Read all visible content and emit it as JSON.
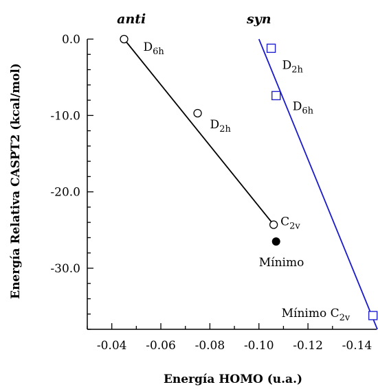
{
  "chart_data": {
    "type": "scatter",
    "xlabel": "Energía HOMO (u.a.)",
    "ylabel": "Energía Relativa CASPT2 (kcal/mol)",
    "xlim": [
      -0.03,
      -0.148
    ],
    "ylim": [
      -38,
      0
    ],
    "x_reversed": true,
    "xticks": [
      -0.04,
      -0.06,
      -0.08,
      -0.1,
      -0.12,
      -0.14
    ],
    "xtick_labels": [
      "-0.04",
      "-0.06",
      "-0.08",
      "-0.10",
      "-0.12",
      "-0.14"
    ],
    "yticks": [
      0,
      -10,
      -20,
      -30
    ],
    "ytick_labels": [
      "0.0",
      "-10.0",
      "-20.0",
      "-30.0"
    ],
    "grid": false,
    "groups": [
      {
        "title": "anti",
        "title_x": -0.048
      },
      {
        "title": "syn",
        "title_x": -0.1
      }
    ],
    "series": [
      {
        "marker": "circle-open",
        "color": "#000000",
        "points": [
          {
            "x": -0.045,
            "y": 0.0,
            "label": "D",
            "sub": "6h"
          },
          {
            "x": -0.075,
            "y": -9.7,
            "label": "D",
            "sub": "2h"
          },
          {
            "x": -0.106,
            "y": -24.3,
            "label": "C",
            "sub": "2v"
          }
        ],
        "fit_line": {
          "x": [
            -0.045,
            -0.106
          ],
          "y": [
            0.0,
            -24.3
          ],
          "color": "#000000"
        }
      },
      {
        "marker": "circle-filled",
        "color": "#000000",
        "points": [
          {
            "x": -0.107,
            "y": -26.5,
            "label": "Mínimo",
            "sub": ""
          }
        ]
      },
      {
        "marker": "square-open",
        "color": "#2222cc",
        "points": [
          {
            "x": -0.105,
            "y": -1.2,
            "label": "D",
            "sub": "2h"
          },
          {
            "x": -0.107,
            "y": -7.4,
            "label": "D",
            "sub": "6h"
          },
          {
            "x": -0.1465,
            "y": -36.2,
            "label": "Mínimo C",
            "sub": "2v"
          }
        ],
        "fit_line": {
          "x": [
            -0.1,
            -0.1483
          ],
          "y": [
            0.0,
            -38.0
          ],
          "color": "#1a1acc"
        }
      }
    ]
  }
}
